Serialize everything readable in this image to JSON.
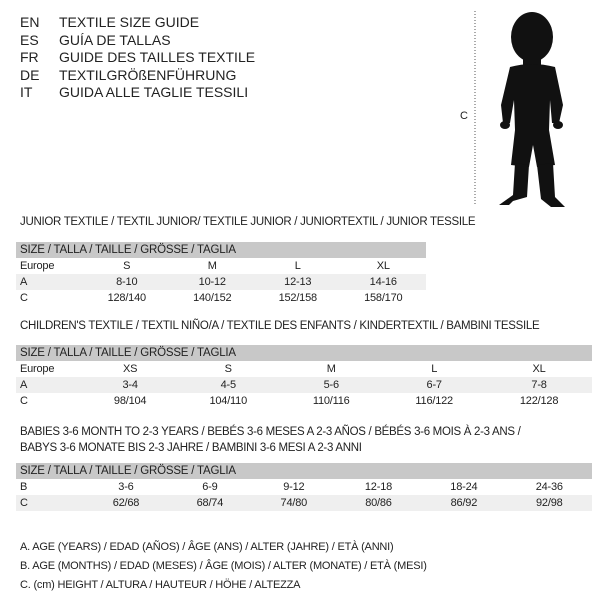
{
  "title_lines": [
    {
      "code": "EN",
      "text": "TEXTILE SIZE GUIDE"
    },
    {
      "code": "ES",
      "text": "GUÍA DE TALLAS"
    },
    {
      "code": "FR",
      "text": "GUIDE DES TAILLES TEXTILE"
    },
    {
      "code": "DE",
      "text": "TEXTILGRÖßENFÜHRUNG"
    },
    {
      "code": "IT",
      "text": "GUIDA ALLE TAGLIE TESSILI"
    }
  ],
  "figure": {
    "label": "C"
  },
  "junior": {
    "title": "JUNIOR TEXTILE / TEXTIL JUNIOR/ TEXTILE JUNIOR / JUNIORTEXTIL / JUNIOR TESSILE",
    "header": "SIZE / TALLA / TAILLE / GRÖSSE / TAGLIA",
    "rows": [
      [
        "Europe",
        "S",
        "M",
        "L",
        "XL"
      ],
      [
        "A",
        "8-10",
        "10-12",
        "12-13",
        "14-16"
      ],
      [
        "C",
        "128/140",
        "140/152",
        "152/158",
        "158/170"
      ]
    ]
  },
  "children": {
    "title": "CHILDREN'S TEXTILE / TEXTIL NIÑO/A / TEXTILE DES ENFANTS / KINDERTEXTIL / BAMBINI TESSILE",
    "header": "SIZE / TALLA / TAILLE / GRÖSSE / TAGLIA",
    "rows": [
      [
        "Europe",
        "XS",
        "S",
        "M",
        "L",
        "XL"
      ],
      [
        "A",
        "3-4",
        "4-5",
        "5-6",
        "6-7",
        "7-8"
      ],
      [
        "C",
        "98/104",
        "104/110",
        "110/116",
        "116/122",
        "122/128"
      ]
    ]
  },
  "babies": {
    "title1": "BABIES 3-6 MONTH TO 2-3 YEARS / BEBÉS 3-6 MESES A 2-3 AÑOS / BÉBÉS 3-6 MOIS À 2-3 ANS /",
    "title2": "BABYS 3-6 MONATE BIS 2-3 JAHRE / BAMBINI 3-6 MESI A 2-3 ANNI",
    "header": "SIZE / TALLA / TAILLE / GRÖSSE / TAGLIA",
    "rows": [
      [
        "B",
        "3-6",
        "6-9",
        "9-12",
        "12-18",
        "18-24",
        "24-36"
      ],
      [
        "C",
        "62/68",
        "68/74",
        "74/80",
        "80/86",
        "86/92",
        "92/98"
      ]
    ]
  },
  "legend": [
    "A. AGE (YEARS) / EDAD (AÑOS) / ÂGE (ANS) / ALTER (JAHRE) / ETÀ (ANNI)",
    "B. AGE (MONTHS) / EDAD (MESES) / ÂGE (MOIS) / ALTER (MONATE) / ETÀ (MESI)",
    "C. (cm) HEIGHT / ALTURA / HAUTEUR / HÖHE / ALTEZZA"
  ]
}
